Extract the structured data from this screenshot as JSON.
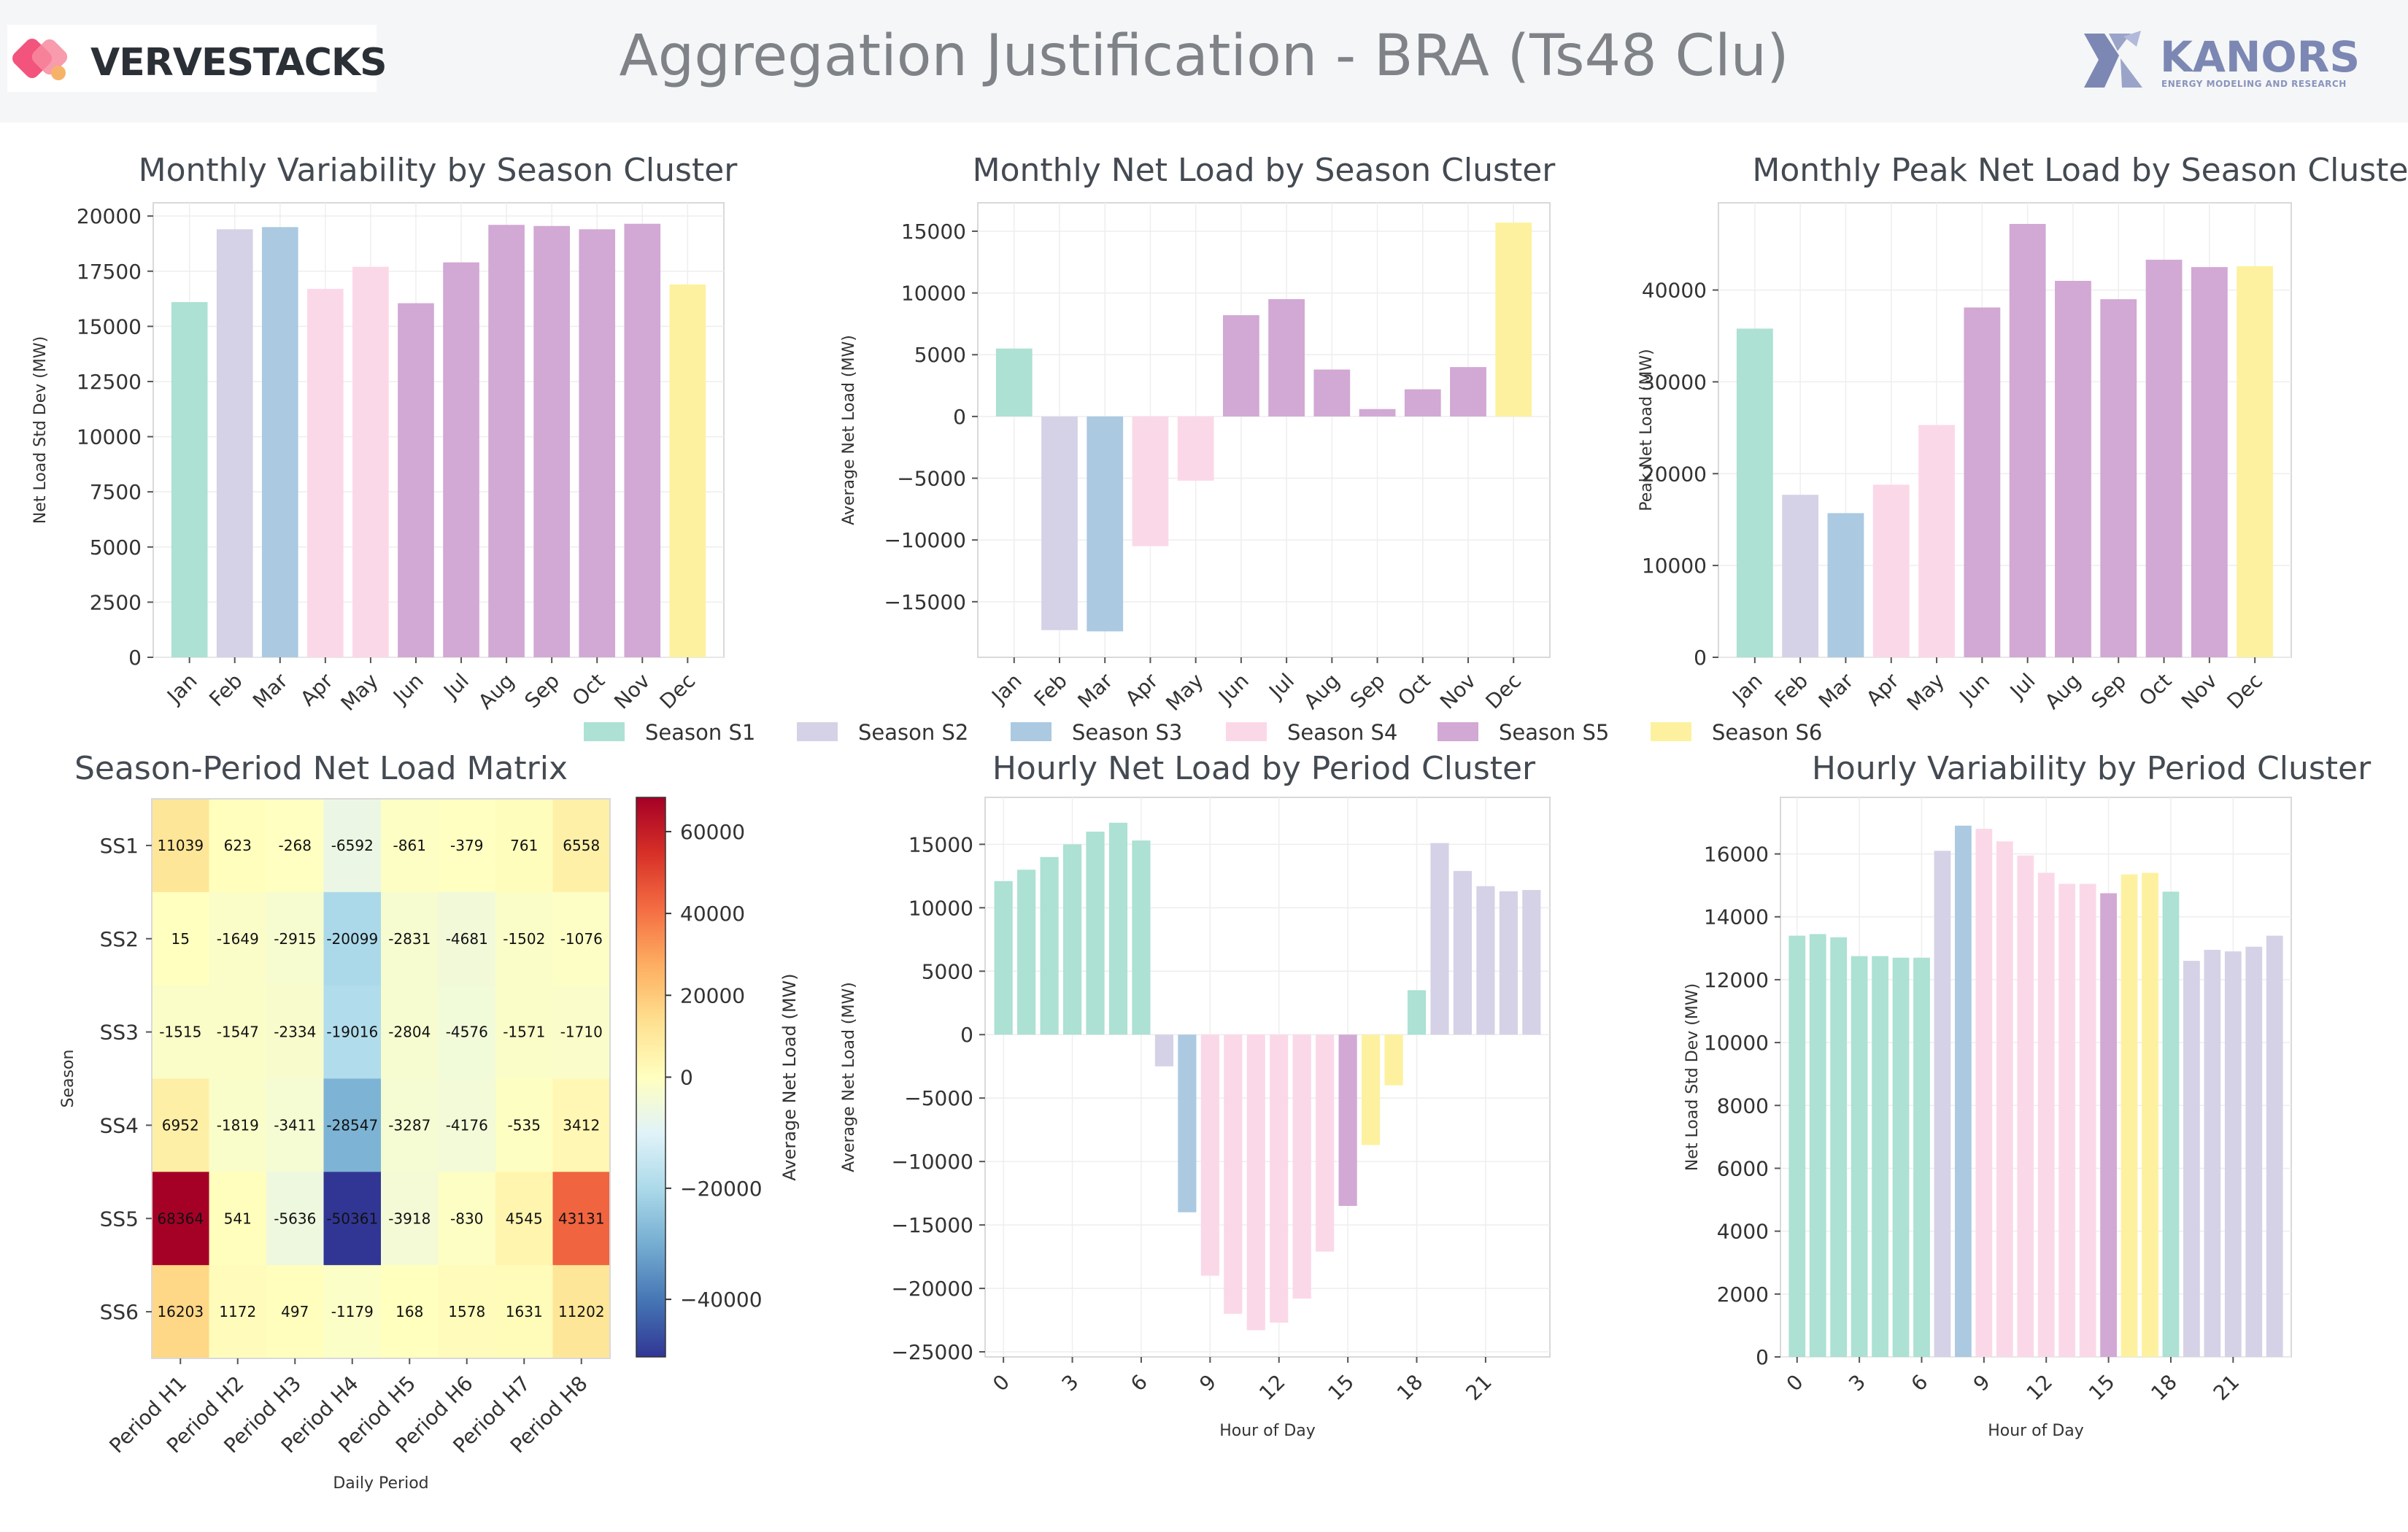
{
  "title": "Aggregation Justification - BRA (Ts48 Clu)",
  "brand_left": "VERVESTACKS",
  "brand_right": "KANORS",
  "brand_right_sub": "ENERGY MODELING AND RESEARCH",
  "colors": {
    "S1": "#a8dfd1",
    "S2": "#d3d0e6",
    "S3": "#a7c6df",
    "S4": "#fbd6e7",
    "S5": "#d0a3d2",
    "S6": "#fdf09a",
    "axis_text": "#333333",
    "title_text": "#444a52",
    "grid": "#eeeeee",
    "axis_line": "#d9d9d9"
  },
  "legend": [
    "Season S1",
    "Season S2",
    "Season S3",
    "Season S4",
    "Season S5",
    "Season S6"
  ],
  "chart_data": [
    {
      "id": "monthly_variability",
      "type": "bar",
      "title": "Monthly Variability by Season Cluster",
      "xlabel": "",
      "ylabel": "Net Load Std Dev (MW)",
      "categories": [
        "Jan",
        "Feb",
        "Mar",
        "Apr",
        "May",
        "Jun",
        "Jul",
        "Aug",
        "Sep",
        "Oct",
        "Nov",
        "Dec"
      ],
      "values": [
        16100,
        19400,
        19500,
        16700,
        17700,
        16050,
        17900,
        19600,
        19550,
        19400,
        19650,
        16900
      ],
      "seasons": [
        "S1",
        "S2",
        "S3",
        "S4",
        "S4",
        "S5",
        "S5",
        "S5",
        "S5",
        "S5",
        "S5",
        "S6"
      ],
      "ylim": [
        0,
        20600
      ],
      "yticks": [
        0,
        2500,
        5000,
        7500,
        10000,
        12500,
        15000,
        17500,
        20000
      ],
      "grid": true
    },
    {
      "id": "monthly_net_load",
      "type": "bar",
      "title": "Monthly Net Load by Season Cluster",
      "xlabel": "",
      "ylabel": "Average Net Load (MW)",
      "categories": [
        "Jan",
        "Feb",
        "Mar",
        "Apr",
        "May",
        "Jun",
        "Jul",
        "Aug",
        "Sep",
        "Oct",
        "Nov",
        "Dec"
      ],
      "values": [
        5500,
        -17300,
        -17400,
        -10500,
        -5200,
        8200,
        9500,
        3800,
        600,
        2200,
        4000,
        15700
      ],
      "seasons": [
        "S1",
        "S2",
        "S3",
        "S4",
        "S4",
        "S5",
        "S5",
        "S5",
        "S5",
        "S5",
        "S5",
        "S6"
      ],
      "ylim": [
        -19500,
        17300
      ],
      "yticks": [
        -15000,
        -10000,
        -5000,
        0,
        5000,
        10000,
        15000
      ],
      "grid": true
    },
    {
      "id": "monthly_peak",
      "type": "bar",
      "title": "Monthly Peak Net Load by Season Cluster",
      "xlabel": "",
      "ylabel": "Peak Net Load (MW)",
      "categories": [
        "Jan",
        "Feb",
        "Mar",
        "Apr",
        "May",
        "Jun",
        "Jul",
        "Aug",
        "Sep",
        "Oct",
        "Nov",
        "Dec"
      ],
      "values": [
        35800,
        17700,
        15700,
        18800,
        25300,
        38100,
        47200,
        41000,
        39000,
        43300,
        42500,
        42600
      ],
      "seasons": [
        "S1",
        "S2",
        "S3",
        "S4",
        "S4",
        "S5",
        "S5",
        "S5",
        "S5",
        "S5",
        "S5",
        "S6"
      ],
      "ylim": [
        0,
        49500
      ],
      "yticks": [
        0,
        10000,
        20000,
        30000,
        40000
      ],
      "grid": true
    },
    {
      "id": "season_period_matrix",
      "type": "heatmap",
      "title": "Season-Period Net Load Matrix",
      "xlabel": "Daily Period",
      "ylabel": "Season",
      "colorbar_label": "Average Net Load (MW)",
      "colorbar_ticks": [
        -40000,
        -20000,
        0,
        20000,
        40000,
        60000
      ],
      "vmin": -50361,
      "vmax": 68364,
      "rows": [
        "SS1",
        "SS2",
        "SS3",
        "SS4",
        "SS5",
        "SS6"
      ],
      "cols": [
        "Period H1",
        "Period H2",
        "Period H3",
        "Period H4",
        "Period H5",
        "Period H6",
        "Period H7",
        "Period H8"
      ],
      "values": [
        [
          11039,
          623,
          -268,
          -6592,
          -861,
          -379,
          761,
          6558
        ],
        [
          15,
          -1649,
          -2915,
          -20099,
          -2831,
          -4681,
          -1502,
          -1076
        ],
        [
          -1515,
          -1547,
          -2334,
          -19016,
          -2804,
          -4576,
          -1571,
          -1710
        ],
        [
          6952,
          -1819,
          -3411,
          -28547,
          -3287,
          -4176,
          -535,
          3412
        ],
        [
          68364,
          541,
          -5636,
          -50361,
          -3918,
          -830,
          4545,
          43131
        ],
        [
          16203,
          1172,
          497,
          -1179,
          168,
          1578,
          1631,
          11202
        ]
      ]
    },
    {
      "id": "hourly_net_load",
      "type": "bar",
      "title": "Hourly Net Load by Period Cluster",
      "xlabel": "Hour of Day",
      "ylabel": "Average Net Load (MW)",
      "x": [
        0,
        1,
        2,
        3,
        4,
        5,
        6,
        7,
        8,
        9,
        10,
        11,
        12,
        13,
        14,
        15,
        16,
        17,
        18,
        19,
        20,
        21,
        22,
        23
      ],
      "values": [
        12100,
        13000,
        14000,
        15000,
        16000,
        16700,
        15300,
        -2500,
        -14000,
        -19000,
        -22000,
        -23300,
        -22700,
        -20800,
        -17100,
        -13500,
        -8700,
        -4000,
        3500,
        15100,
        12900,
        11700,
        11300,
        11400
      ],
      "seasons": [
        "S1",
        "S1",
        "S1",
        "S1",
        "S1",
        "S1",
        "S1",
        "S2",
        "S3",
        "S4",
        "S4",
        "S4",
        "S4",
        "S4",
        "S4",
        "S5",
        "S6",
        "S6",
        "S1",
        "S2",
        "S2",
        "S2",
        "S2",
        "S2"
      ],
      "xticks": [
        0,
        3,
        6,
        9,
        12,
        15,
        18,
        21
      ],
      "ylim": [
        -25400,
        18700
      ],
      "yticks": [
        -25000,
        -20000,
        -15000,
        -10000,
        -5000,
        0,
        5000,
        10000,
        15000
      ],
      "grid": true
    },
    {
      "id": "hourly_variability",
      "type": "bar",
      "title": "Hourly Variability by Period Cluster",
      "xlabel": "Hour of Day",
      "ylabel": "Net Load Std Dev (MW)",
      "x": [
        0,
        1,
        2,
        3,
        4,
        5,
        6,
        7,
        8,
        9,
        10,
        11,
        12,
        13,
        14,
        15,
        16,
        17,
        18,
        19,
        20,
        21,
        22,
        23
      ],
      "values": [
        13400,
        13450,
        13350,
        12750,
        12750,
        12700,
        12700,
        16100,
        16900,
        16800,
        16400,
        15950,
        15400,
        15050,
        15050,
        14750,
        15350,
        15400,
        14800,
        12600,
        12950,
        12900,
        13050,
        13400
      ],
      "seasons": [
        "S1",
        "S1",
        "S1",
        "S1",
        "S1",
        "S1",
        "S1",
        "S2",
        "S3",
        "S4",
        "S4",
        "S4",
        "S4",
        "S4",
        "S4",
        "S5",
        "S6",
        "S6",
        "S1",
        "S2",
        "S2",
        "S2",
        "S2",
        "S2"
      ],
      "xticks": [
        0,
        3,
        6,
        9,
        12,
        15,
        18,
        21
      ],
      "ylim": [
        0,
        17800
      ],
      "yticks": [
        0,
        2000,
        4000,
        6000,
        8000,
        10000,
        12000,
        14000,
        16000
      ],
      "grid": true
    }
  ]
}
